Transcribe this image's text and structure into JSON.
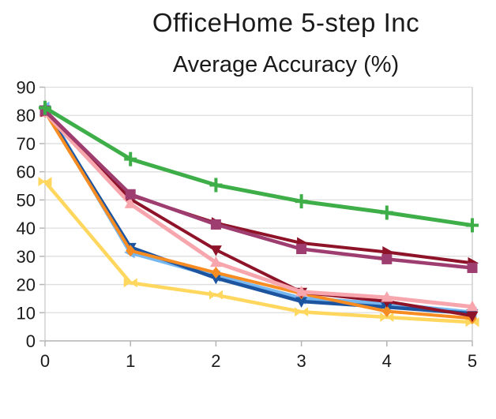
{
  "title": "OfficeHome 5-step Inc",
  "subtitle": "Average Accuracy (%)",
  "chart_data": {
    "type": "line",
    "title": "OfficeHome 5-step Inc",
    "subtitle": "Average Accuracy (%)",
    "xlabel": "",
    "ylabel": "",
    "x": [
      0,
      1,
      2,
      3,
      4,
      5
    ],
    "ylim": [
      0,
      90
    ],
    "xlim": [
      0,
      5
    ],
    "yticks": [
      0,
      10,
      20,
      30,
      40,
      50,
      60,
      70,
      80,
      90
    ],
    "xticks": [
      0,
      1,
      2,
      3,
      4,
      5
    ],
    "grid": "horizontal",
    "legend_position": "none",
    "series": [
      {
        "name": "yellow-line",
        "color": "#ffd75e",
        "marker": "bowtie",
        "line_width": 4.5,
        "values": [
          56.5,
          20.6,
          16.3,
          10.3,
          8.4,
          6.6
        ]
      },
      {
        "name": "sky-blue-line",
        "color": "#76b7f0",
        "marker": "triangle-left",
        "line_width": 5.5,
        "values": [
          82.8,
          31.4,
          23.0,
          15.0,
          13.1,
          10.0
        ]
      },
      {
        "name": "navy-line",
        "color": "#1d549f",
        "marker": "triangle-down",
        "line_width": 4.5,
        "values": [
          82.0,
          33.2,
          22.3,
          14.0,
          12.0,
          9.7
        ]
      },
      {
        "name": "orange-line",
        "color": "#f68c22",
        "marker": "diamond",
        "line_width": 4.0,
        "values": [
          81.3,
          32.0,
          24.2,
          16.8,
          10.5,
          8.0
        ]
      },
      {
        "name": "dark-red-lower-line",
        "color": "#8e1328",
        "marker": "triangle-down",
        "line_width": 4.0,
        "values": [
          81.5,
          50.3,
          32.3,
          17.3,
          14.0,
          8.9
        ]
      },
      {
        "name": "pink-line",
        "color": "#f7a6ad",
        "marker": "triangle-up",
        "line_width": 5.0,
        "values": [
          81.0,
          48.6,
          27.8,
          17.4,
          15.4,
          12.1
        ]
      },
      {
        "name": "dark-red-upper-line",
        "color": "#8e1328",
        "marker": "triangle-right",
        "line_width": 4.0,
        "values": [
          81.5,
          51.7,
          41.8,
          34.7,
          31.5,
          27.6
        ]
      },
      {
        "name": "purple-line",
        "color": "#9e3d70",
        "marker": "square",
        "line_width": 4.5,
        "values": [
          81.7,
          52.0,
          41.3,
          32.6,
          29.0,
          25.9
        ]
      },
      {
        "name": "green-line",
        "color": "#3eae49",
        "marker": "plus",
        "line_width": 5.0,
        "values": [
          82.7,
          64.5,
          55.3,
          49.5,
          45.5,
          41.0
        ]
      }
    ]
  },
  "axis": {
    "x_tick_labels": [
      "0",
      "1",
      "2",
      "3",
      "4",
      "5"
    ],
    "y_tick_labels": [
      "0",
      "10",
      "20",
      "30",
      "40",
      "50",
      "60",
      "70",
      "80",
      "90"
    ]
  },
  "colors": {
    "background": "#ffffff",
    "grid": "#dedede",
    "spine_side": "#d0d0d0",
    "spine_bottom": "#b5b5b5",
    "tick": "#b5b5b5",
    "text": "#1a1a1a"
  }
}
